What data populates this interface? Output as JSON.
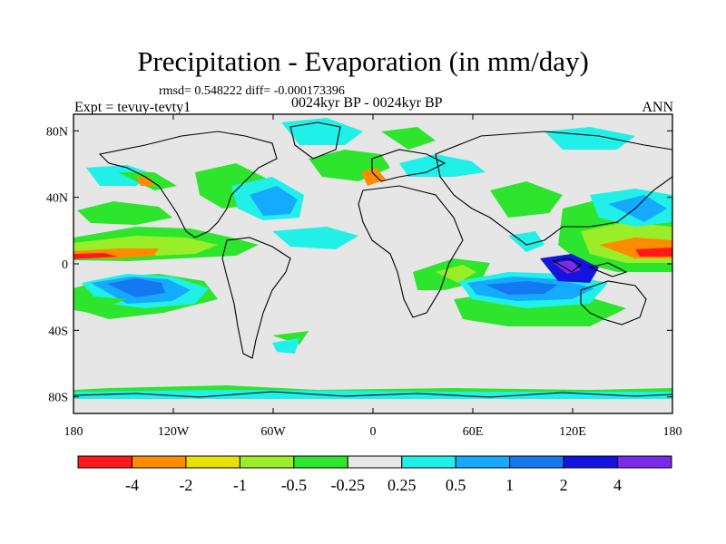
{
  "title": "Precipitation - Evaporation (in mm/day)",
  "stats": "rmsd= 0.548222 diff= -0.000173396",
  "experiment": "Expt = tevuy-tevty1",
  "period": "0024kyr BP - 0024kyr BP",
  "season": "ANN",
  "map": {
    "projection": "cylindrical equidistant",
    "lon_range": [
      -180,
      180
    ],
    "lat_range": [
      -90,
      90
    ],
    "lat_ticks": [
      {
        "lat": 80,
        "label": "80N"
      },
      {
        "lat": 40,
        "label": "40N"
      },
      {
        "lat": 0,
        "label": "0"
      },
      {
        "lat": -40,
        "label": "40S"
      },
      {
        "lat": -80,
        "label": "80S"
      }
    ],
    "lon_ticks": [
      {
        "lon": -180,
        "label": "180"
      },
      {
        "lon": -120,
        "label": "120W"
      },
      {
        "lon": -60,
        "label": "60W"
      },
      {
        "lon": 0,
        "label": "0"
      },
      {
        "lon": 60,
        "label": "60E"
      },
      {
        "lon": 120,
        "label": "120E"
      },
      {
        "lon": 180,
        "label": "180"
      }
    ]
  },
  "colorbar": {
    "colors": [
      "#ff1a1a",
      "#ff8c00",
      "#e8e000",
      "#9aee28",
      "#2ee52e",
      "#e6e6e6",
      "#20f0e8",
      "#14aaff",
      "#1478f0",
      "#1414e0",
      "#7a2ae8"
    ],
    "labels": [
      "-4",
      "-2",
      "-1",
      "-0.5",
      "-0.25",
      "0.25",
      "0.5",
      "1",
      "2",
      "4"
    ]
  },
  "colors": {
    "background": "#e6e6e6",
    "coast": "#000000"
  }
}
